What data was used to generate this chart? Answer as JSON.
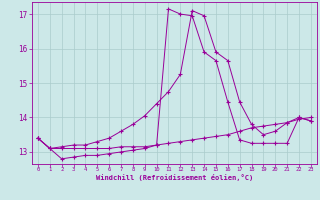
{
  "background_color": "#cce8e8",
  "grid_color": "#aacccc",
  "line_color": "#990099",
  "marker": "+",
  "xlim": [
    -0.5,
    23.5
  ],
  "ylim": [
    12.65,
    17.35
  ],
  "yticks": [
    13,
    14,
    15,
    16,
    17
  ],
  "xticks": [
    0,
    1,
    2,
    3,
    4,
    5,
    6,
    7,
    8,
    9,
    10,
    11,
    12,
    13,
    14,
    15,
    16,
    17,
    18,
    19,
    20,
    21,
    22,
    23
  ],
  "xlabel": "Windchill (Refroidissement éolien,°C)",
  "series1": [
    13.4,
    13.1,
    12.8,
    12.85,
    12.9,
    12.9,
    12.95,
    13.0,
    13.05,
    13.1,
    13.2,
    17.15,
    17.0,
    16.95,
    15.9,
    15.65,
    14.45,
    13.35,
    13.25,
    13.25,
    13.25,
    13.25,
    14.0,
    13.9
  ],
  "series2": [
    13.4,
    13.1,
    13.15,
    13.2,
    13.2,
    13.3,
    13.4,
    13.6,
    13.8,
    14.05,
    14.4,
    14.75,
    15.25,
    17.1,
    16.95,
    15.9,
    15.65,
    14.45,
    13.8,
    13.5,
    13.6,
    13.85,
    14.0,
    13.9
  ],
  "series3": [
    13.4,
    13.1,
    13.1,
    13.1,
    13.1,
    13.1,
    13.1,
    13.15,
    13.15,
    13.15,
    13.2,
    13.25,
    13.3,
    13.35,
    13.4,
    13.45,
    13.5,
    13.6,
    13.7,
    13.75,
    13.8,
    13.85,
    13.95,
    14.0
  ]
}
